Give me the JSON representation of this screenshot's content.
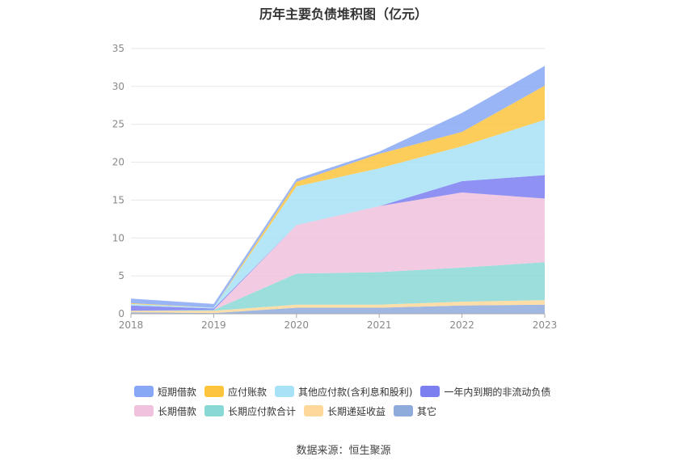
{
  "chart_data": {
    "type": "area",
    "stacked": true,
    "title": "历年主要负债堆积图（亿元）",
    "x": [
      "2018",
      "2019",
      "2020",
      "2021",
      "2022",
      "2023"
    ],
    "ylim": [
      0,
      35
    ],
    "yticks": [
      0,
      5,
      10,
      15,
      20,
      25,
      30,
      35
    ],
    "grid": true,
    "legend_position": "bottom",
    "series": [
      {
        "name": "其它",
        "color": "#8fabdc",
        "values": [
          0.2,
          0.1,
          0.8,
          0.8,
          1.1,
          1.2
        ]
      },
      {
        "name": "长期递延收益",
        "color": "#fdd89a",
        "values": [
          0.2,
          0.3,
          0.4,
          0.4,
          0.5,
          0.6
        ]
      },
      {
        "name": "长期应付款合计",
        "color": "#8ad8d6",
        "values": [
          0.0,
          0.1,
          4.1,
          4.3,
          4.5,
          5.0
        ]
      },
      {
        "name": "长期借款",
        "color": "#f0c2dd",
        "values": [
          0.0,
          0.0,
          6.4,
          8.7,
          9.9,
          8.4
        ]
      },
      {
        "name": "一年内到期的非流动负债",
        "color": "#7b7ff0",
        "values": [
          0.7,
          0.2,
          0.0,
          0.0,
          1.5,
          3.1
        ]
      },
      {
        "name": "其他应付款(含利息和股利)",
        "color": "#a8e2f7",
        "values": [
          0.2,
          0.1,
          5.1,
          5.0,
          4.6,
          7.3
        ]
      },
      {
        "name": "应付账款",
        "color": "#fdc43e",
        "values": [
          0.1,
          0.0,
          0.6,
          1.9,
          1.9,
          4.5
        ]
      },
      {
        "name": "短期借款",
        "color": "#88a8f5",
        "values": [
          0.6,
          0.5,
          0.4,
          0.3,
          2.5,
          2.6
        ]
      }
    ],
    "legend_rows": [
      [
        "短期借款",
        "应付账款",
        "其他应付款(含利息和股利)",
        "一年内到期的非流动负债"
      ],
      [
        "长期借款",
        "长期应付款合计",
        "长期递延收益",
        "其它"
      ]
    ]
  },
  "source": "数据来源：恒生聚源"
}
